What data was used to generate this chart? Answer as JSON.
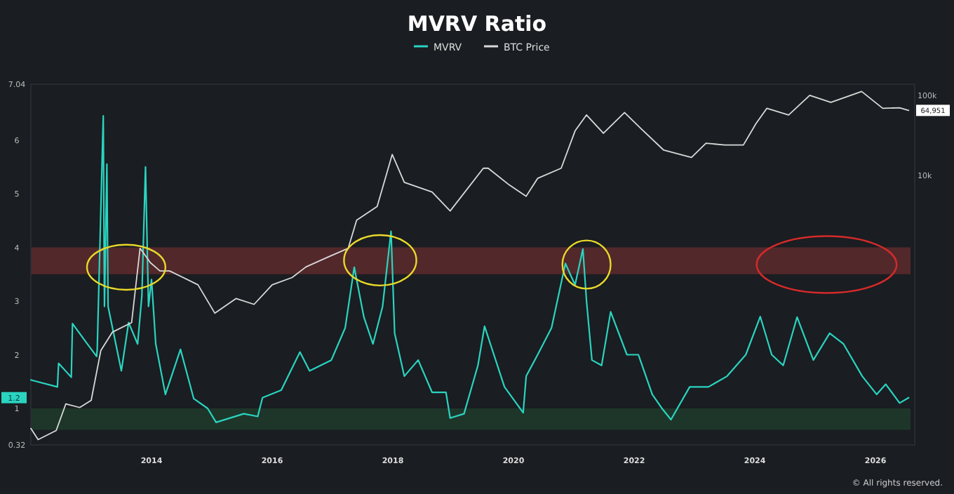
{
  "chart_data": {
    "type": "line",
    "title": "MVRV Ratio",
    "legend": "top",
    "grid": false,
    "log": "y2",
    "xlim": [
      2012.0,
      2026.65
    ],
    "xticks": [
      2014,
      2016,
      2018,
      2020,
      2022,
      2024,
      2026
    ],
    "ylim": [
      0.32,
      7.04
    ],
    "yticks": [
      0.32,
      1,
      2,
      3,
      4,
      5,
      6,
      7.04
    ],
    "y2lim": [
      4.3,
      138000
    ],
    "y2ticks": [
      {
        "value": 10000,
        "label": "10k"
      },
      {
        "value": 100000,
        "label": "100k"
      }
    ],
    "bands": [
      {
        "axis": "y",
        "from": 3.5,
        "to": 4.0,
        "label": null,
        "color": "#5a2a2c"
      },
      {
        "axis": "y",
        "from": 0.6,
        "to": 1.0,
        "label": null,
        "color": "#1f3a2b"
      }
    ],
    "annotations": [
      "1.2",
      "64,951",
      "© All rights reserved."
    ],
    "series": [
      {
        "name": "MVRV",
        "color": "#2ad4c0",
        "x": [
          2012.0,
          2012.44,
          2012.46,
          2012.67,
          2012.69,
          2012.91,
          2013.09,
          2013.1,
          2013.2,
          2013.22,
          2013.26,
          2013.28,
          2013.5,
          2013.62,
          2013.77,
          2013.84,
          2013.9,
          2013.95,
          2014.0,
          2014.07,
          2014.23,
          2014.48,
          2014.7,
          2014.93,
          2015.07,
          2015.53,
          2015.76,
          2015.84,
          2016.15,
          2016.46,
          2016.62,
          2016.98,
          2017.21,
          2017.36,
          2017.52,
          2017.67,
          2017.83,
          2017.97,
          2018.03,
          2018.19,
          2018.42,
          2018.65,
          2018.88,
          2018.95,
          2019.18,
          2019.41,
          2019.52,
          2019.85,
          2020.16,
          2020.21,
          2020.4,
          2020.63,
          2020.86,
          2021.02,
          2021.15,
          2021.21,
          2021.3,
          2021.46,
          2021.61,
          2021.88,
          2022.07,
          2022.3,
          2022.46,
          2022.61,
          2022.92,
          2023.23,
          2023.54,
          2023.85,
          2024.09,
          2024.28,
          2024.47,
          2024.7,
          2024.97,
          2025.24,
          2025.47,
          2025.78,
          2026.02,
          2026.17,
          2026.4,
          2026.55
        ],
        "values": [
          1.53,
          1.4,
          1.84,
          1.58,
          2.58,
          2.24,
          1.97,
          2.1,
          6.45,
          2.9,
          5.55,
          2.9,
          1.7,
          2.6,
          2.2,
          3.1,
          5.5,
          2.9,
          3.4,
          2.2,
          1.26,
          2.1,
          1.18,
          1.0,
          0.74,
          0.9,
          0.85,
          1.2,
          1.34,
          2.05,
          1.7,
          1.9,
          2.5,
          3.63,
          2.7,
          2.2,
          2.9,
          4.3,
          2.4,
          1.6,
          1.9,
          1.3,
          1.3,
          0.82,
          0.9,
          1.8,
          2.53,
          1.4,
          0.92,
          1.6,
          2.0,
          2.5,
          3.7,
          3.3,
          3.97,
          3.0,
          1.9,
          1.8,
          2.8,
          2.0,
          2.0,
          1.26,
          1.0,
          0.79,
          1.4,
          1.4,
          1.6,
          2.0,
          2.71,
          2.0,
          1.8,
          2.7,
          1.9,
          2.4,
          2.2,
          1.6,
          1.26,
          1.45,
          1.1,
          1.2
        ]
      },
      {
        "name": "BTC Price",
        "color": "#d9d9d9",
        "axis": "y2",
        "x": [
          2012.0,
          2012.12,
          2012.42,
          2012.58,
          2012.81,
          2013.0,
          2013.16,
          2013.35,
          2013.67,
          2013.81,
          2013.98,
          2014.14,
          2014.3,
          2014.77,
          2015.05,
          2015.4,
          2015.7,
          2016.0,
          2016.33,
          2016.56,
          2016.93,
          2017.26,
          2017.4,
          2017.74,
          2017.99,
          2018.19,
          2018.65,
          2018.95,
          2019.5,
          2019.58,
          2019.93,
          2020.21,
          2020.4,
          2020.79,
          2021.02,
          2021.21,
          2021.49,
          2021.84,
          2022.12,
          2022.49,
          2022.95,
          2023.19,
          2023.5,
          2023.81,
          2024.02,
          2024.2,
          2024.56,
          2024.91,
          2025.26,
          2025.77,
          2026.12,
          2026.4,
          2026.55
        ],
        "values": [
          6.9,
          5.0,
          6.5,
          14,
          12.6,
          15.5,
          65,
          110,
          145,
          1230,
          815,
          640,
          640,
          430,
          190,
          290,
          245,
          430,
          530,
          720,
          960,
          1230,
          2760,
          4100,
          18300,
          8200,
          6200,
          3600,
          12300,
          12300,
          7600,
          5500,
          9200,
          12300,
          36000,
          57000,
          33600,
          61000,
          38000,
          20700,
          16800,
          25300,
          24000,
          24000,
          44600,
          69000,
          57000,
          100000,
          82000,
          112000,
          69000,
          70000,
          64951
        ]
      }
    ]
  }
}
